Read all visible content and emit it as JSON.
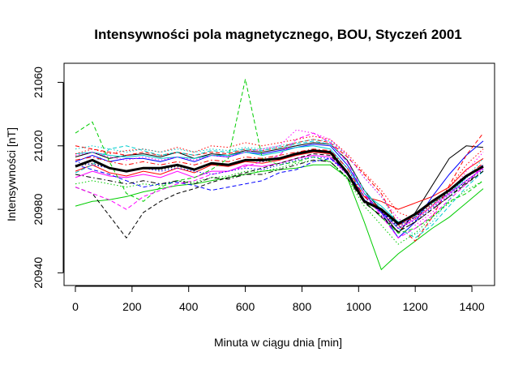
{
  "chart_data": {
    "type": "line",
    "title": "Intensywności pola magnetycznego, BOU, Styczeń 2001",
    "xlabel": "Minuta w ciągu dnia [min]",
    "ylabel": "Intensywności [nT]",
    "xlim": [
      -40,
      1480
    ],
    "ylim": [
      20932,
      21072
    ],
    "x_ticks": [
      0,
      200,
      400,
      600,
      800,
      1000,
      1200,
      1400
    ],
    "y_ticks": [
      20940,
      20980,
      21020,
      21060
    ],
    "grid": false,
    "legend": "none",
    "x": [
      0,
      60,
      120,
      180,
      240,
      300,
      360,
      420,
      480,
      540,
      600,
      660,
      720,
      780,
      840,
      900,
      960,
      1020,
      1080,
      1140,
      1200,
      1260,
      1320,
      1380,
      1440
    ],
    "mean_series": {
      "color": "#000000",
      "values": [
        21007,
        21011,
        21006,
        21004,
        21006,
        21006,
        21008,
        21005,
        21009,
        21008,
        21011,
        21011,
        21012,
        21015,
        21017,
        21016,
        21003,
        20985,
        20980,
        20971,
        20977,
        20985,
        20992,
        21001,
        21007
      ]
    },
    "series": [
      {
        "color": "#000000",
        "dash": "solid",
        "values": [
          21013,
          21016,
          21012,
          21014,
          21015,
          21013,
          21016,
          21012,
          21015,
          21014,
          21017,
          21016,
          21018,
          21020,
          21022,
          21021,
          21011,
          20992,
          20979,
          20965,
          20978,
          20995,
          21012,
          21020,
          21019
        ]
      },
      {
        "color": "#ff0000",
        "dash": "solid",
        "values": [
          21004,
          21008,
          21003,
          21001,
          21004,
          21002,
          21006,
          21003,
          21008,
          21007,
          21010,
          21009,
          21011,
          21014,
          21016,
          21015,
          21003,
          20988,
          20985,
          20980,
          20984,
          20988,
          20994,
          21005,
          21012
        ]
      },
      {
        "color": "#00cd00",
        "dash": "solid",
        "values": [
          20982,
          20985,
          20986,
          20988,
          20991,
          20993,
          20995,
          20996,
          20998,
          21000,
          21002,
          21004,
          21005,
          21006,
          21008,
          21008,
          21000,
          20972,
          20942,
          20952,
          20960,
          20968,
          20975,
          20984,
          20993
        ]
      },
      {
        "color": "#0000ff",
        "dash": "solid",
        "values": [
          21010,
          21014,
          21010,
          21012,
          21012,
          21010,
          21013,
          21010,
          21014,
          21013,
          21016,
          21015,
          21017,
          21019,
          21021,
          21020,
          21008,
          20990,
          20978,
          20962,
          20972,
          20988,
          21002,
          21014,
          21023
        ]
      },
      {
        "color": "#00cdcd",
        "dash": "solid",
        "values": [
          21015,
          21016,
          21014,
          21013,
          21014,
          21012,
          21013,
          21012,
          21014,
          21014,
          21016,
          21014,
          21016,
          21019,
          21020,
          21018,
          21006,
          20990,
          20982,
          20972,
          20976,
          20984,
          20990,
          21000,
          21008
        ]
      },
      {
        "color": "#ff00ff",
        "dash": "solid",
        "values": [
          21000,
          21004,
          21001,
          21000,
          21002,
          21000,
          21004,
          21000,
          21004,
          21004,
          21008,
          21007,
          21009,
          21012,
          21014,
          21013,
          21002,
          20986,
          20978,
          20968,
          20974,
          20982,
          20990,
          20998,
          21006
        ]
      },
      {
        "color": "#000000",
        "dash": "dashed",
        "values": [
          20994,
          20990,
          20976,
          20962,
          20978,
          20985,
          20990,
          20993,
          20997,
          21000,
          21003,
          21006,
          21009,
          21012,
          21015,
          21014,
          21003,
          20985,
          20975,
          20966,
          20972,
          20980,
          20988,
          20996,
          21004
        ]
      },
      {
        "color": "#ff0000",
        "dash": "dashed",
        "values": [
          21020,
          21018,
          21016,
          21014,
          21016,
          21014,
          21016,
          21014,
          21016,
          21015,
          21018,
          21017,
          21019,
          21022,
          21024,
          21022,
          21013,
          21002,
          20990,
          20970,
          20960,
          20975,
          20995,
          21014,
          21028
        ]
      },
      {
        "color": "#00cd00",
        "dash": "dashed",
        "values": [
          21028,
          21035,
          21010,
          20990,
          20985,
          20994,
          20998,
          21000,
          21005,
          21012,
          21062,
          21012,
          21008,
          21010,
          21013,
          21010,
          21000,
          20985,
          20975,
          20965,
          20968,
          20975,
          20985,
          20990,
          20998
        ]
      },
      {
        "color": "#0000ff",
        "dash": "dashed",
        "values": [
          21008,
          21005,
          21002,
          20998,
          20994,
          20996,
          20997,
          20995,
          20992,
          20994,
          20996,
          20998,
          21003,
          21005,
          21010,
          21012,
          21004,
          20988,
          20978,
          20970,
          20975,
          20985,
          20992,
          21000,
          21008
        ]
      },
      {
        "color": "#00cdcd",
        "dash": "dashed",
        "values": [
          21003,
          21008,
          21018,
          21020,
          21017,
          21014,
          21016,
          21014,
          21017,
          21016,
          21018,
          21017,
          21019,
          21021,
          21023,
          21021,
          21010,
          20992,
          20980,
          20968,
          20962,
          20970,
          20982,
          20994,
          21004
        ]
      },
      {
        "color": "#ff00ff",
        "dash": "dashed",
        "values": [
          20994,
          20990,
          20986,
          20980,
          20988,
          20992,
          20996,
          20998,
          21002,
          21004,
          21007,
          21010,
          21014,
          21024,
          21028,
          21022,
          21010,
          20990,
          20976,
          20962,
          20968,
          20976,
          20986,
          20996,
          21008
        ]
      },
      {
        "color": "#000000",
        "dash": "dotted",
        "values": [
          21007,
          21009,
          21006,
          21004,
          21006,
          21005,
          21007,
          21005,
          21009,
          21008,
          21011,
          21010,
          21012,
          21015,
          21017,
          21016,
          21004,
          20986,
          20979,
          20969,
          20975,
          20983,
          20991,
          21000,
          21007
        ]
      },
      {
        "color": "#ff0000",
        "dash": "dotted",
        "values": [
          21015,
          21018,
          21015,
          21017,
          21018,
          21016,
          21019,
          21016,
          21020,
          21019,
          21022,
          21020,
          21022,
          21024,
          21026,
          21024,
          21015,
          21003,
          20992,
          20978,
          20974,
          20982,
          20994,
          21008,
          21018
        ]
      },
      {
        "color": "#00cd00",
        "dash": "dotted",
        "values": [
          20996,
          20998,
          20996,
          20994,
          20996,
          20995,
          20998,
          20997,
          21000,
          21001,
          21004,
          21004,
          21006,
          21009,
          21011,
          21010,
          20999,
          20982,
          20970,
          20958,
          20965,
          20975,
          20984,
          20992,
          20998
        ]
      },
      {
        "color": "#0000ff",
        "dash": "dotted",
        "values": [
          21010,
          21008,
          21006,
          21004,
          21006,
          21004,
          21006,
          21004,
          21002,
          21004,
          21006,
          21005,
          21008,
          21011,
          21013,
          21012,
          21002,
          20986,
          20978,
          20968,
          20973,
          20981,
          20989,
          20998,
          21005
        ]
      },
      {
        "color": "#00cdcd",
        "dash": "dotted",
        "values": [
          21018,
          21020,
          21018,
          21016,
          21018,
          21016,
          21018,
          21016,
          21018,
          21017,
          21019,
          21018,
          21020,
          21022,
          21024,
          21023,
          21014,
          21000,
          20988,
          20970,
          20964,
          20972,
          20986,
          21000,
          21012
        ]
      },
      {
        "color": "#ff00ff",
        "dash": "dotted",
        "values": [
          21014,
          21016,
          21013,
          21011,
          21013,
          21011,
          21013,
          21011,
          21014,
          21013,
          21016,
          21018,
          21020,
          21030,
          21028,
          21024,
          21014,
          21000,
          20988,
          20974,
          20970,
          20978,
          20990,
          21004,
          21016
        ]
      },
      {
        "color": "#000000",
        "dash": "dashdot",
        "values": [
          21002,
          21000,
          20998,
          20996,
          20998,
          20996,
          20998,
          20996,
          21000,
          20999,
          21002,
          21002,
          21005,
          21008,
          21011,
          21010,
          21000,
          20984,
          20976,
          20966,
          20972,
          20980,
          20988,
          20997,
          21004
        ]
      },
      {
        "color": "#ff0000",
        "dash": "dashdot",
        "values": [
          21011,
          21013,
          21010,
          21008,
          21010,
          21008,
          21010,
          21008,
          21011,
          21010,
          21013,
          21012,
          21014,
          21016,
          21018,
          21017,
          21006,
          20988,
          20980,
          20970,
          20976,
          20984,
          20992,
          21001,
          21009
        ]
      }
    ]
  }
}
